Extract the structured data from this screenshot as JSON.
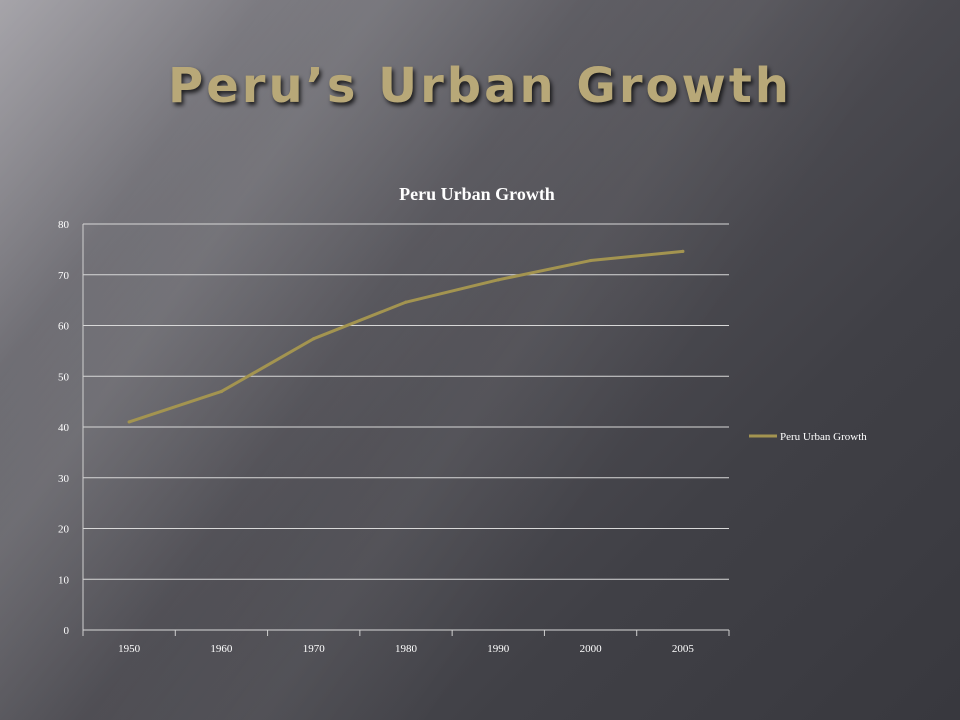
{
  "slide": {
    "title": "Peru’s Urban Growth"
  },
  "colors": {
    "title": "#b8a878",
    "series": "#a39450",
    "grid": "#d8d8d8",
    "text": "#ffffff"
  },
  "chart_data": {
    "type": "line",
    "title": "Peru Urban Growth",
    "xlabel": "",
    "ylabel": "",
    "categories": [
      "1950",
      "1960",
      "1970",
      "1980",
      "1990",
      "2000",
      "2005"
    ],
    "series": [
      {
        "name": "Peru Urban Growth",
        "values": [
          41,
          47,
          57.4,
          64.6,
          69,
          72.8,
          74.6
        ]
      }
    ],
    "ylim": [
      0,
      80
    ],
    "yticks": [
      0,
      10,
      20,
      30,
      40,
      50,
      60,
      70,
      80
    ],
    "grid": true,
    "legend": "right"
  }
}
